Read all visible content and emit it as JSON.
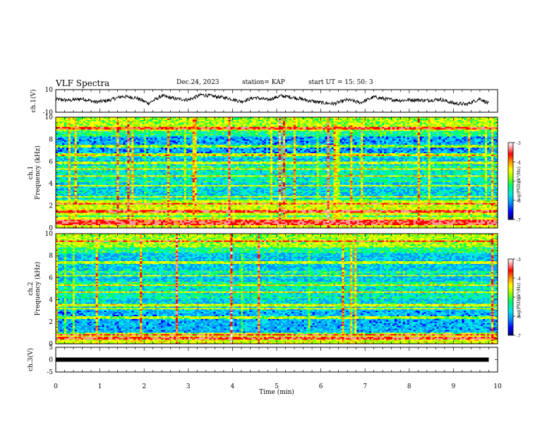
{
  "header": {
    "title": "VLF Spectra",
    "date": "Dec.24, 2023",
    "station": "station= KAP",
    "start_ut": "start  UT  =   15: 50: 3"
  },
  "chart_data": [
    {
      "type": "line",
      "name": "ch1-waveform",
      "ylabel": "ch.1(V)",
      "ylim": [
        -10,
        10
      ],
      "y_ticks": [
        "10",
        "-10"
      ],
      "xlim": [
        0,
        10
      ],
      "x": [
        0,
        0.3,
        0.6,
        0.9,
        1.2,
        1.5,
        1.8,
        2.1,
        2.4,
        2.7,
        3.0,
        3.3,
        3.6,
        3.9,
        4.2,
        4.5,
        4.8,
        5.1,
        5.4,
        5.7,
        6.0,
        6.3,
        6.6,
        6.9,
        7.2,
        7.5,
        7.8,
        8.1,
        8.4,
        8.7,
        9.0,
        9.3,
        9.6,
        9.8
      ],
      "y": [
        1.5,
        0.5,
        2.0,
        -1.0,
        0.5,
        4.0,
        3.0,
        -2.0,
        4.5,
        2.0,
        1.0,
        5.5,
        4.0,
        2.5,
        -0.5,
        3.0,
        1.0,
        4.5,
        3.0,
        0.5,
        -1.5,
        -2.5,
        1.0,
        -1.5,
        3.5,
        1.5,
        0.5,
        1.0,
        0.5,
        1.5,
        -2.0,
        -3.0,
        2.0,
        -2.5
      ]
    },
    {
      "type": "heatmap",
      "name": "ch1-spectrogram",
      "ylabel": "ch.1",
      "ylabel2": "Frequency  (kHz)",
      "ylim": [
        0,
        10
      ],
      "y_ticks": [
        "0",
        "2",
        "4",
        "6",
        "8",
        "10"
      ],
      "xlim": [
        0,
        10
      ],
      "colorbar": {
        "min": -7,
        "max": -3,
        "ticks": [
          "-3",
          "-4",
          "-5",
          "-6",
          "-7"
        ],
        "label": "log(PSD)(V²/Hz)"
      }
    },
    {
      "type": "heatmap",
      "name": "ch2-spectrogram",
      "ylabel": "ch.2",
      "ylabel2": "Frequency  (kHz)",
      "ylim": [
        0,
        10
      ],
      "y_ticks": [
        "0",
        "2",
        "4",
        "6",
        "8",
        "10"
      ],
      "xlim": [
        0,
        10
      ],
      "colorbar": {
        "min": -7,
        "max": -3,
        "ticks": [
          "-3",
          "-4",
          "-5",
          "-6",
          "-7"
        ],
        "label": "log(PSD)(V²/Hz)"
      }
    },
    {
      "type": "line",
      "name": "ch3-waveform",
      "ylabel": "ch.3(V)",
      "ylim": [
        -5,
        5
      ],
      "y_ticks": [
        "5",
        "0",
        "-5"
      ],
      "xlim": [
        0,
        10
      ],
      "x": [
        0,
        9.8
      ],
      "y": [
        0,
        0
      ]
    }
  ],
  "x_axis": {
    "label": "Time  (min)",
    "ticks": [
      "0",
      "1",
      "2",
      "3",
      "4",
      "5",
      "6",
      "7",
      "8",
      "9",
      "10"
    ]
  },
  "colors": {
    "colormap": [
      "#00006e",
      "#0000ff",
      "#0096ff",
      "#00e6e6",
      "#00ff64",
      "#9bff00",
      "#ffff00",
      "#ff9600",
      "#ff0000",
      "#ff9696",
      "#ffffff"
    ]
  }
}
